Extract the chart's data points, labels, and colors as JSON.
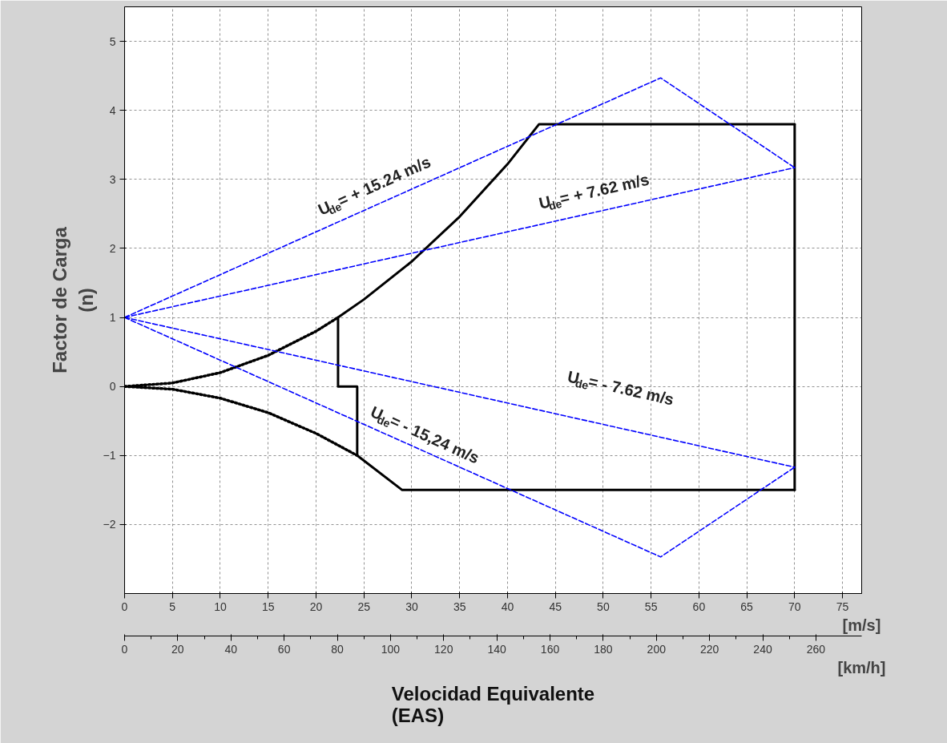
{
  "chart_data": {
    "type": "line",
    "xlabel": "[m/s]",
    "x2label": "[km/h]",
    "ylabel": "Factor de Carga\n(n)",
    "xlim": [
      0,
      77
    ],
    "xticks": [
      0,
      5,
      10,
      15,
      20,
      25,
      30,
      35,
      40,
      45,
      50,
      55,
      60,
      65,
      70,
      75
    ],
    "x2lim": [
      0,
      277.2
    ],
    "x2ticks": [
      0,
      20,
      40,
      60,
      80,
      100,
      120,
      140,
      160,
      180,
      200,
      220,
      240,
      260
    ],
    "ylim": [
      -3,
      5.5
    ],
    "yticks": [
      -2,
      -1,
      0,
      1,
      2,
      3,
      4,
      5
    ],
    "grid": true,
    "series": [
      {
        "color": "#000000",
        "line_style": "solid",
        "x": [
          22.3,
          25,
          30,
          35,
          40,
          43.3,
          70
        ],
        "values": [
          1,
          1.26,
          1.81,
          2.46,
          3.22,
          3.8,
          3.8
        ]
      },
      {
        "color": "#000000",
        "line_style": "solid",
        "x": [
          70,
          70
        ],
        "values": [
          3.8,
          -1.5
        ]
      },
      {
        "color": "#000000",
        "line_style": "solid",
        "x": [
          22.3,
          22.3,
          24.3,
          24.3,
          29,
          70
        ],
        "values": [
          1,
          0,
          0,
          -1,
          -1.5,
          -1.5
        ]
      },
      {
        "color": "#000000",
        "line_style": "dotted",
        "x": [
          0,
          5,
          10,
          15,
          20,
          22.3
        ],
        "values": [
          0,
          0.05,
          0.2,
          0.45,
          0.8,
          1
        ]
      },
      {
        "color": "#000000",
        "line_style": "dotted",
        "x": [
          0,
          5,
          10,
          15,
          20,
          24.3
        ],
        "values": [
          0,
          -0.04,
          -0.17,
          -0.38,
          -0.68,
          -1
        ]
      },
      {
        "color": "#0000ff",
        "line_style": "dashed",
        "x": [
          0,
          56,
          70
        ],
        "values": [
          1,
          4.47,
          3.17
        ]
      },
      {
        "color": "#0000ff",
        "line_style": "dashed",
        "x": [
          0,
          70
        ],
        "values": [
          1,
          3.17
        ]
      },
      {
        "color": "#0000ff",
        "line_style": "dashed",
        "x": [
          0,
          70
        ],
        "values": [
          1,
          -1.17
        ]
      },
      {
        "color": "#0000ff",
        "line_style": "dashed",
        "x": [
          0,
          56,
          70
        ],
        "values": [
          1,
          -2.47,
          -1.17
        ]
      }
    ],
    "annotations": [
      "U$_{de}$ = + 15.24 m/s",
      "U$_{de}$ = + 7.62 m/s",
      "U$_{de}$ =  - 7.62 m/s",
      "U$_{de}$ =  - 15,24 m/s",
      "Velocidad Equivalente\n(EAS)"
    ]
  }
}
